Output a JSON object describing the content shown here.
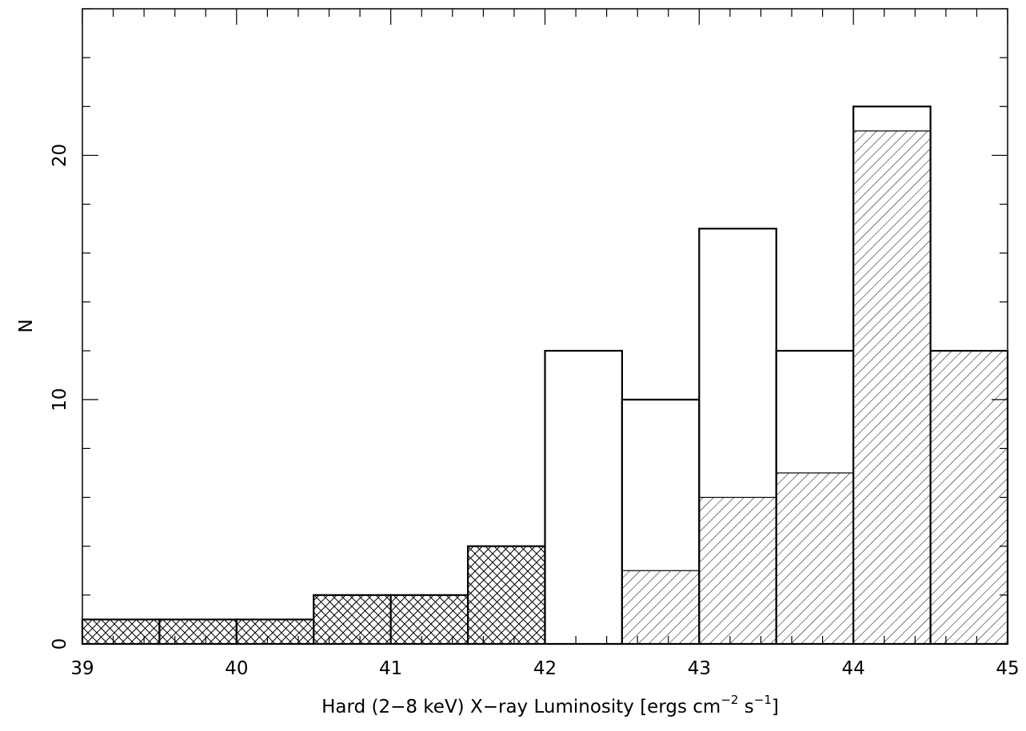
{
  "chart_data": {
    "type": "bar",
    "title": "",
    "xlabel": "Hard (2−8 keV) X−ray Luminosity [ergs cm",
    "xlabel_sup1": "−2",
    "xlabel_mid": " s",
    "xlabel_sup2": "−1",
    "xlabel_end": "]",
    "ylabel": "N",
    "xlim": [
      39,
      45
    ],
    "ylim": [
      0,
      26
    ],
    "x_ticks": [
      "39",
      "40",
      "41",
      "42",
      "43",
      "44",
      "45"
    ],
    "y_ticks": [
      "0",
      "10",
      "20"
    ],
    "bin_width": 0.5,
    "series": [
      {
        "style": "outline",
        "bins": [
          39.0,
          39.5,
          40.0,
          40.5,
          41.0,
          41.5,
          42.0,
          42.5,
          43.0,
          43.5,
          44.0,
          44.5
        ],
        "values": [
          1,
          1,
          1,
          2,
          2,
          4,
          12,
          10,
          17,
          12,
          22,
          12
        ]
      },
      {
        "style": "cross-hatch",
        "bins": [
          39.0,
          39.5,
          40.0,
          40.5,
          41.0,
          41.5
        ],
        "values": [
          1,
          1,
          1,
          2,
          2,
          4
        ]
      },
      {
        "style": "diagonal-hatch",
        "bins": [
          42.5,
          43.0,
          43.5,
          44.0,
          44.5
        ],
        "values": [
          3,
          6,
          7,
          21,
          12
        ]
      }
    ]
  }
}
